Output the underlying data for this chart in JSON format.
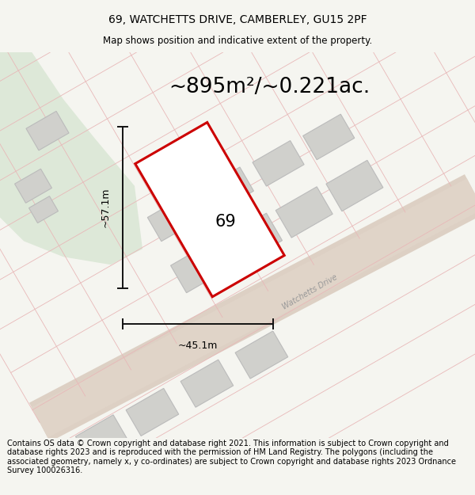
{
  "title": "69, WATCHETTS DRIVE, CAMBERLEY, GU15 2PF",
  "subtitle": "Map shows position and indicative extent of the property.",
  "area_text": "~895m²/~0.221ac.",
  "label_69": "69",
  "dim_width": "~45.1m",
  "dim_height": "~57.1m",
  "street_label": "Watchetts Drive",
  "footer": "Contains OS data © Crown copyright and database right 2021. This information is subject to Crown copyright and database rights 2023 and is reproduced with the permission of HM Land Registry. The polygons (including the associated geometry, namely x, y co-ordinates) are subject to Crown copyright and database rights 2023 Ordnance Survey 100026316.",
  "bg_color": "#f5f5f0",
  "map_bg": "#f2f0ed",
  "green_color": "#dde8d8",
  "road_fill": "#ddd0c4",
  "road_edge": "#ccbcb0",
  "plot_fill": "#ffffff",
  "plot_edge": "#cc0000",
  "building_fill": "#d0d0cc",
  "building_edge": "#bbbbbb",
  "cadastral_color": "#e8b8b8",
  "dim_color": "#111111",
  "street_text_color": "#999999",
  "title_fontsize": 10,
  "subtitle_fontsize": 8.5,
  "area_fontsize": 19,
  "label_fontsize": 15,
  "dim_fontsize": 9,
  "street_fontsize": 7,
  "footer_fontsize": 7
}
